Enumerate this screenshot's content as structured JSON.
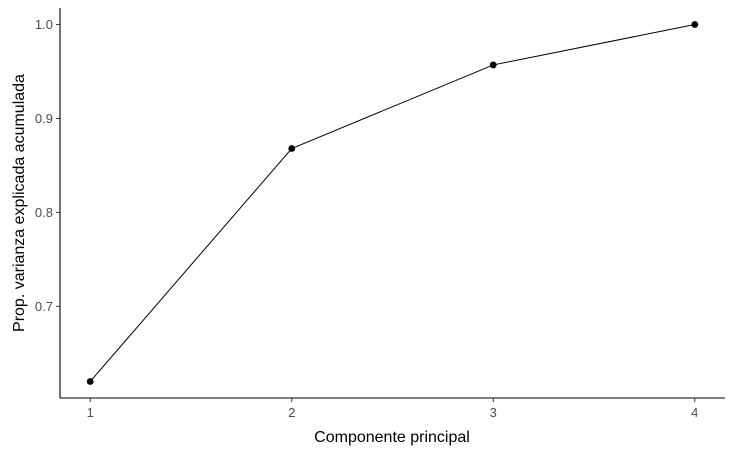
{
  "chart_data": {
    "type": "line",
    "title": "",
    "xlabel": "Componente principal",
    "ylabel": "Prop. varianza explicada acumulada",
    "x": [
      1,
      2,
      3,
      4
    ],
    "series": [
      {
        "values": [
          0.62,
          0.868,
          0.957,
          1.0
        ]
      }
    ],
    "xlim": [
      0.85,
      4.15
    ],
    "ylim": [
      0.6024,
      1.0176
    ],
    "x_ticks": [
      1,
      2,
      3,
      4
    ],
    "x_tick_labels": [
      "1",
      "2",
      "3",
      "4"
    ],
    "y_ticks": [
      0.7,
      0.8,
      0.9,
      1.0
    ],
    "y_tick_labels": [
      "0.7",
      "0.8",
      "0.9",
      "1.0"
    ],
    "grid": false,
    "legend": "none",
    "colors": {
      "line": "#000000",
      "points": "#000000",
      "axis": "#000000",
      "tick_text": "#4d4d4d",
      "background": "#ffffff"
    }
  }
}
